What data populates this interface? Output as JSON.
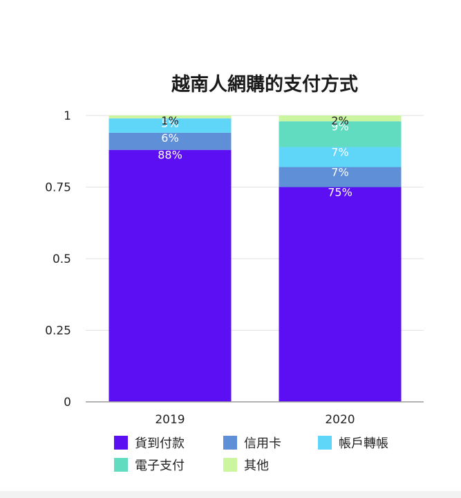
{
  "chart_data": {
    "type": "bar",
    "stacked": true,
    "title": "越南人網購的支付方式",
    "categories": [
      "2019",
      "2020"
    ],
    "ylim": [
      0,
      1
    ],
    "yticks": [
      {
        "value": 0,
        "label": "0"
      },
      {
        "value": 0.25,
        "label": "0.25"
      },
      {
        "value": 0.5,
        "label": "0.5"
      },
      {
        "value": 0.75,
        "label": "0.75"
      },
      {
        "value": 1,
        "label": "1"
      }
    ],
    "grid": true,
    "legend_position": "bottom",
    "series": [
      {
        "name": "貨到付款",
        "color": "#5b0ff2",
        "values": [
          0.88,
          0.75
        ],
        "labels": [
          "88%",
          "75%"
        ],
        "label_color": "#ffffff"
      },
      {
        "name": "信用卡",
        "color": "#5f8fd6",
        "values": [
          0.06,
          0.07
        ],
        "labels": [
          "6%",
          "7%"
        ],
        "label_color": "#ffffff"
      },
      {
        "name": "帳戶轉帳",
        "color": "#5fd6f8",
        "values": [
          0.05,
          0.07
        ],
        "labels": [
          "5%",
          "7%"
        ],
        "label_color": "#ffffff"
      },
      {
        "name": "電子支付",
        "color": "#62dcc0",
        "values": [
          0,
          0.09
        ],
        "labels": [
          "",
          "9%"
        ],
        "label_color": "#ffffff"
      },
      {
        "name": "其他",
        "color": "#ccf5a0",
        "values": [
          0.01,
          0.02
        ],
        "labels": [
          "1%",
          "2%"
        ],
        "label_color": "#222222"
      }
    ]
  }
}
